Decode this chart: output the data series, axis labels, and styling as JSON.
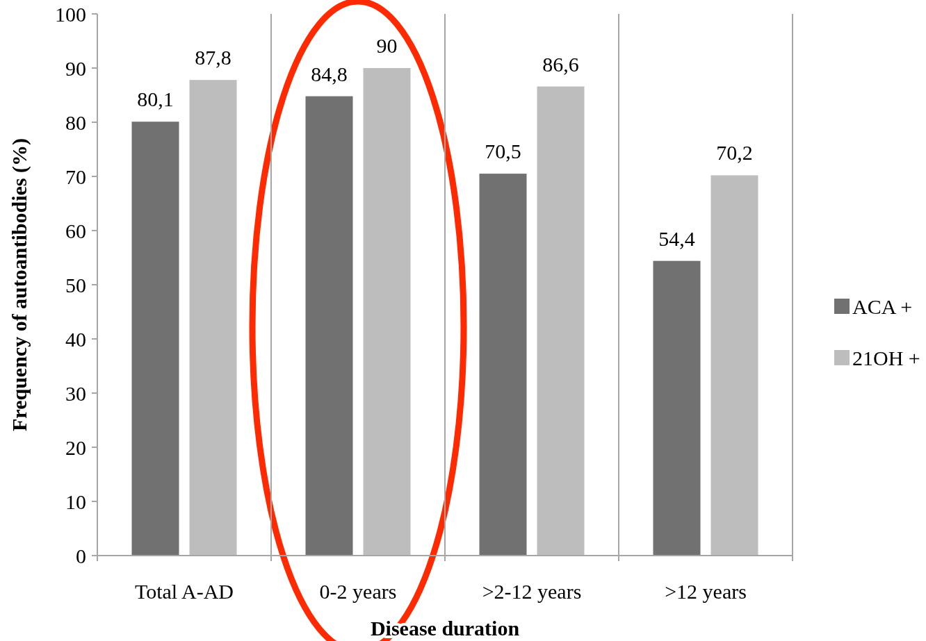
{
  "chart_data": {
    "type": "bar",
    "xlabel": "Disease duration",
    "ylabel": "Frequency of autoantibodies (%)",
    "categories": [
      "Total A-AD",
      "0-2 years",
      ">2-12 years",
      ">12 years"
    ],
    "series": [
      {
        "name": "ACA +",
        "color": "#717171",
        "values": [
          80.1,
          84.8,
          70.5,
          54.4
        ],
        "value_labels": [
          "80,1",
          "84,8",
          "70,5",
          "54,4"
        ]
      },
      {
        "name": "21OH +",
        "color": "#bdbdbd",
        "values": [
          87.8,
          90,
          86.6,
          70.2
        ],
        "value_labels": [
          "87,8",
          "90",
          "86,6",
          "70,2"
        ]
      }
    ],
    "ylim": [
      0,
      100
    ],
    "yticks": [
      0,
      10,
      20,
      30,
      40,
      50,
      60,
      70,
      80,
      90,
      100
    ],
    "grid": "x",
    "legend": "right"
  }
}
